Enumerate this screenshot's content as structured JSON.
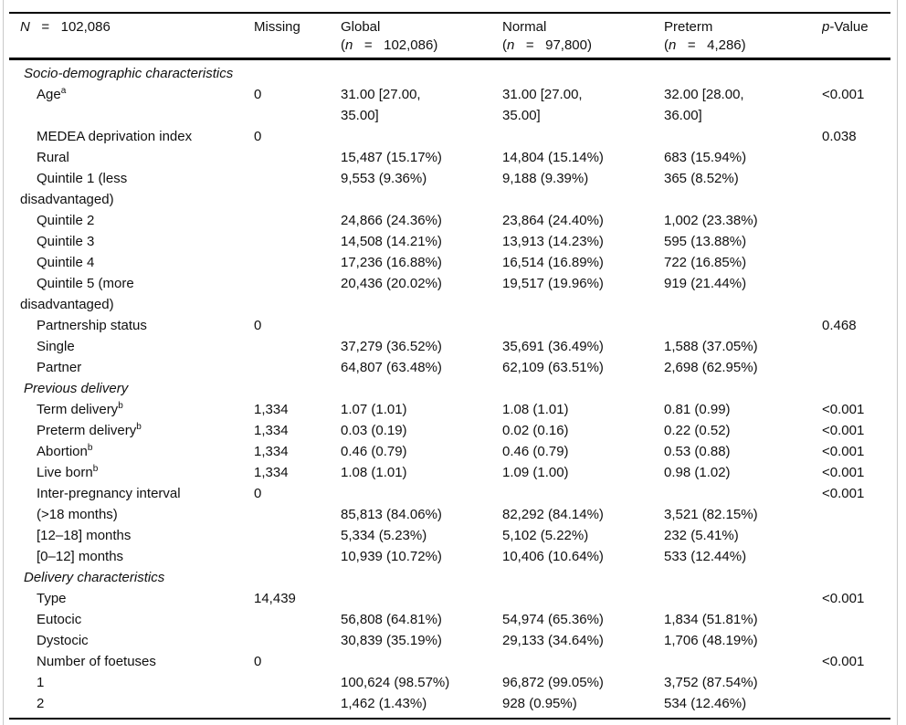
{
  "table": {
    "header": {
      "col1": {
        "symbol": "N",
        "rest": "   =   102,086"
      },
      "missing_label": "Missing",
      "groups": [
        {
          "name": "Global",
          "paren_open": "(",
          "n_symbol": "n",
          "n_rest": "   =   102,086)"
        },
        {
          "name": "Normal",
          "paren_open": "(",
          "n_symbol": "n",
          "n_rest": "   =   97,800)"
        },
        {
          "name": "Preterm",
          "paren_open": "(",
          "n_symbol": "n",
          "n_rest": "   =   4,286)"
        }
      ],
      "pvalue": {
        "p_symbol": "p",
        "rest": "-Value"
      }
    },
    "rows": [
      {
        "type": "section",
        "label": "Socio-demographic characteristics",
        "sup": "",
        "missing": "",
        "global": "",
        "normal": "",
        "preterm": "",
        "p": ""
      },
      {
        "type": "item",
        "label": "Age",
        "sup": "a",
        "missing": "0",
        "global": "31.00 [27.00,\n35.00]",
        "normal": "31.00 [27.00,\n35.00]",
        "preterm": "32.00 [28.00,\n36.00]",
        "p": "<0.001"
      },
      {
        "type": "item",
        "label": "MEDEA deprivation index",
        "sup": "",
        "missing": "0",
        "global": "",
        "normal": "",
        "preterm": "",
        "p": "0.038"
      },
      {
        "type": "item",
        "label": "Rural",
        "sup": "",
        "missing": "",
        "global": "15,487 (15.17%)",
        "normal": "14,804 (15.14%)",
        "preterm": "683 (15.94%)",
        "p": ""
      },
      {
        "type": "item",
        "label": "Quintile 1 (less\ndisadvantaged)",
        "sup": "",
        "missing": "",
        "global": "9,553 (9.36%)",
        "normal": "9,188 (9.39%)",
        "preterm": "365 (8.52%)",
        "p": ""
      },
      {
        "type": "item",
        "label": "Quintile 2",
        "sup": "",
        "missing": "",
        "global": "24,866 (24.36%)",
        "normal": "23,864 (24.40%)",
        "preterm": "1,002 (23.38%)",
        "p": ""
      },
      {
        "type": "item",
        "label": "Quintile 3",
        "sup": "",
        "missing": "",
        "global": "14,508 (14.21%)",
        "normal": "13,913 (14.23%)",
        "preterm": "595 (13.88%)",
        "p": ""
      },
      {
        "type": "item",
        "label": "Quintile 4",
        "sup": "",
        "missing": "",
        "global": "17,236 (16.88%)",
        "normal": "16,514 (16.89%)",
        "preterm": "722 (16.85%)",
        "p": ""
      },
      {
        "type": "item",
        "label": "Quintile 5 (more\ndisadvantaged)",
        "sup": "",
        "missing": "",
        "global": "20,436 (20.02%)",
        "normal": "19,517 (19.96%)",
        "preterm": "919 (21.44%)",
        "p": ""
      },
      {
        "type": "item",
        "label": "Partnership status",
        "sup": "",
        "missing": "0",
        "global": "",
        "normal": "",
        "preterm": "",
        "p": "0.468"
      },
      {
        "type": "item",
        "label": "Single",
        "sup": "",
        "missing": "",
        "global": "37,279 (36.52%)",
        "normal": "35,691 (36.49%)",
        "preterm": "1,588 (37.05%)",
        "p": ""
      },
      {
        "type": "item",
        "label": "Partner",
        "sup": "",
        "missing": "",
        "global": "64,807 (63.48%)",
        "normal": "62,109 (63.51%)",
        "preterm": "2,698 (62.95%)",
        "p": ""
      },
      {
        "type": "section",
        "label": "Previous delivery",
        "sup": "",
        "missing": "",
        "global": "",
        "normal": "",
        "preterm": "",
        "p": ""
      },
      {
        "type": "item",
        "label": "Term delivery",
        "sup": "b",
        "missing": "1,334",
        "global": "1.07 (1.01)",
        "normal": "1.08 (1.01)",
        "preterm": "0.81 (0.99)",
        "p": "<0.001"
      },
      {
        "type": "item",
        "label": "Preterm delivery",
        "sup": "b",
        "missing": "1,334",
        "global": "0.03 (0.19)",
        "normal": "0.02 (0.16)",
        "preterm": "0.22 (0.52)",
        "p": "<0.001"
      },
      {
        "type": "item",
        "label": "Abortion",
        "sup": "b",
        "missing": "1,334",
        "global": "0.46 (0.79)",
        "normal": "0.46 (0.79)",
        "preterm": "0.53 (0.88)",
        "p": "<0.001"
      },
      {
        "type": "item",
        "label": "Live born",
        "sup": "b",
        "missing": "1,334",
        "global": "1.08 (1.01)",
        "normal": "1.09 (1.00)",
        "preterm": "0.98 (1.02)",
        "p": "<0.001"
      },
      {
        "type": "item",
        "label": "Inter-pregnancy interval",
        "sup": "",
        "missing": "0",
        "global": "",
        "normal": "",
        "preterm": "",
        "p": "<0.001"
      },
      {
        "type": "item",
        "label": "(>18 months)",
        "sup": "",
        "missing": "",
        "global": "85,813 (84.06%)",
        "normal": "82,292 (84.14%)",
        "preterm": "3,521 (82.15%)",
        "p": ""
      },
      {
        "type": "item",
        "label": "[12–18] months",
        "sup": "",
        "missing": "",
        "global": "5,334 (5.23%)",
        "normal": "5,102 (5.22%)",
        "preterm": "232 (5.41%)",
        "p": ""
      },
      {
        "type": "item",
        "label": "[0–12] months",
        "sup": "",
        "missing": "",
        "global": "10,939 (10.72%)",
        "normal": "10,406 (10.64%)",
        "preterm": "533 (12.44%)",
        "p": ""
      },
      {
        "type": "section",
        "label": "Delivery characteristics",
        "sup": "",
        "missing": "",
        "global": "",
        "normal": "",
        "preterm": "",
        "p": ""
      },
      {
        "type": "item",
        "label": "Type",
        "sup": "",
        "missing": "14,439",
        "global": "",
        "normal": "",
        "preterm": "",
        "p": "<0.001"
      },
      {
        "type": "item",
        "label": "Eutocic",
        "sup": "",
        "missing": "",
        "global": "56,808 (64.81%)",
        "normal": "54,974 (65.36%)",
        "preterm": "1,834 (51.81%)",
        "p": ""
      },
      {
        "type": "item",
        "label": "Dystocic",
        "sup": "",
        "missing": "",
        "global": "30,839 (35.19%)",
        "normal": "29,133 (34.64%)",
        "preterm": "1,706 (48.19%)",
        "p": ""
      },
      {
        "type": "item",
        "label": "Number of foetuses",
        "sup": "",
        "missing": "0",
        "global": "",
        "normal": "",
        "preterm": "",
        "p": "<0.001"
      },
      {
        "type": "item",
        "label": "1",
        "sup": "",
        "missing": "",
        "global": "100,624 (98.57%)",
        "normal": "96,872 (99.05%)",
        "preterm": "3,752 (87.54%)",
        "p": ""
      },
      {
        "type": "item",
        "label": "2",
        "sup": "",
        "missing": "",
        "global": "1,462 (1.43%)",
        "normal": "928 (0.95%)",
        "preterm": "534 (12.46%)",
        "p": ""
      }
    ]
  },
  "colors": {
    "rule": "#000000",
    "side_border": "#c9c9c9",
    "text": "#101010",
    "background": "#ffffff"
  }
}
